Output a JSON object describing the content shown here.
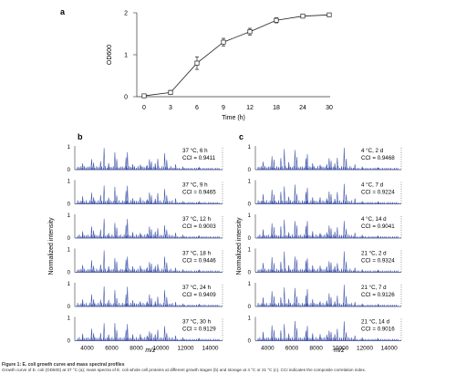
{
  "figure": {
    "caption_title": "Figure 1: E. coli growth curve and mass spectral profiles",
    "caption_text": "Growth curve of E. coli (OD600) at 37 °C (a); mass spectra of E. coli whole cell proteins at different growth stages (b) and storage at 4 °C or 21 °C (c). CCI indicates the composite correlation index."
  },
  "chart_data": [
    {
      "panel": "a",
      "type": "line",
      "xlabel": "Time (h)",
      "ylabel": "OD600",
      "categories": [
        "0",
        "3",
        "6",
        "9",
        "12",
        "18",
        "24",
        "30"
      ],
      "values": [
        0.02,
        0.1,
        0.8,
        1.3,
        1.55,
        1.82,
        1.92,
        1.95
      ],
      "errors": [
        0.02,
        0.05,
        0.15,
        0.09,
        0.08,
        0.06,
        0.04,
        0.04
      ],
      "yticks": [
        "0",
        "1",
        "2"
      ],
      "ylim": [
        0,
        2
      ],
      "markers": "open-square",
      "error_bars": true
    },
    {
      "panel": "b",
      "type": "line",
      "xlabel": "m/z",
      "ylabel": "Normalized intensity",
      "xlim": [
        3000,
        15000
      ],
      "xticks": [
        "4000",
        "6000",
        "8000",
        "10000",
        "12000",
        "14000"
      ],
      "yticks": [
        "0",
        "1"
      ],
      "spectra": [
        {
          "label": "37 °C, 6 h",
          "cci": "CCI = 0.9411"
        },
        {
          "label": "37 °C, 9 h",
          "cci": "CCI = 0.9465"
        },
        {
          "label": "37 °C, 12 h",
          "cci": "CCI = 0.9003"
        },
        {
          "label": "37 °C, 18 h",
          "cci": "CCI = 0.9446"
        },
        {
          "label": "37 °C, 24 h",
          "cci": "CCI = 0.9409"
        },
        {
          "label": "37 °C, 30 h",
          "cci": "CCI = 0.9129"
        }
      ],
      "peaks": [
        [
          3640,
          0.35
        ],
        [
          4365,
          0.55
        ],
        [
          4530,
          0.35
        ],
        [
          5095,
          0.4
        ],
        [
          5380,
          1.0
        ],
        [
          5750,
          0.3
        ],
        [
          6255,
          0.8
        ],
        [
          6410,
          0.5
        ],
        [
          7160,
          0.6
        ],
        [
          7275,
          0.9
        ],
        [
          7710,
          0.3
        ],
        [
          8325,
          0.3
        ],
        [
          8875,
          0.25
        ],
        [
          9065,
          0.55
        ],
        [
          9225,
          0.4
        ],
        [
          9535,
          0.3
        ],
        [
          9740,
          0.5
        ],
        [
          10300,
          0.75
        ],
        [
          10470,
          0.45
        ],
        [
          11190,
          0.25
        ],
        [
          11785,
          0.15
        ],
        [
          13100,
          0.12
        ]
      ],
      "color": "#3a4fa8"
    },
    {
      "panel": "c",
      "type": "line",
      "xlabel": "m/z",
      "ylabel": "Normalized intensity",
      "xlim": [
        3000,
        15000
      ],
      "xticks": [
        "4000",
        "6000",
        "8000",
        "10000",
        "12000",
        "14000"
      ],
      "yticks": [
        "0",
        "1"
      ],
      "spectra": [
        {
          "label": "4 °C, 2 d",
          "cci": "CCI = 0.9468"
        },
        {
          "label": "4 °C, 7 d",
          "cci": "CCI = 0.9224"
        },
        {
          "label": "4 °C, 14 d",
          "cci": "CCI = 0.9041"
        },
        {
          "label": "21 °C, 2 d",
          "cci": "CCI = 0.9324"
        },
        {
          "label": "21 °C, 7 d",
          "cci": "CCI = 0.9126"
        },
        {
          "label": "21 °C, 14 d",
          "cci": "CCI = 0.9016"
        }
      ],
      "peaks": [
        [
          3640,
          0.45
        ],
        [
          4365,
          0.7
        ],
        [
          4530,
          0.5
        ],
        [
          5095,
          0.55
        ],
        [
          5380,
          0.95
        ],
        [
          5750,
          0.35
        ],
        [
          6255,
          0.9
        ],
        [
          6410,
          0.6
        ],
        [
          7160,
          0.55
        ],
        [
          7275,
          0.8
        ],
        [
          7710,
          0.35
        ],
        [
          8325,
          0.3
        ],
        [
          8875,
          0.3
        ],
        [
          9065,
          0.6
        ],
        [
          9225,
          0.45
        ],
        [
          9535,
          0.3
        ],
        [
          9740,
          0.55
        ],
        [
          10300,
          1.0
        ],
        [
          10470,
          0.5
        ],
        [
          11190,
          0.25
        ],
        [
          11785,
          0.15
        ],
        [
          13100,
          0.1
        ]
      ],
      "color": "#3a4fa8"
    }
  ]
}
